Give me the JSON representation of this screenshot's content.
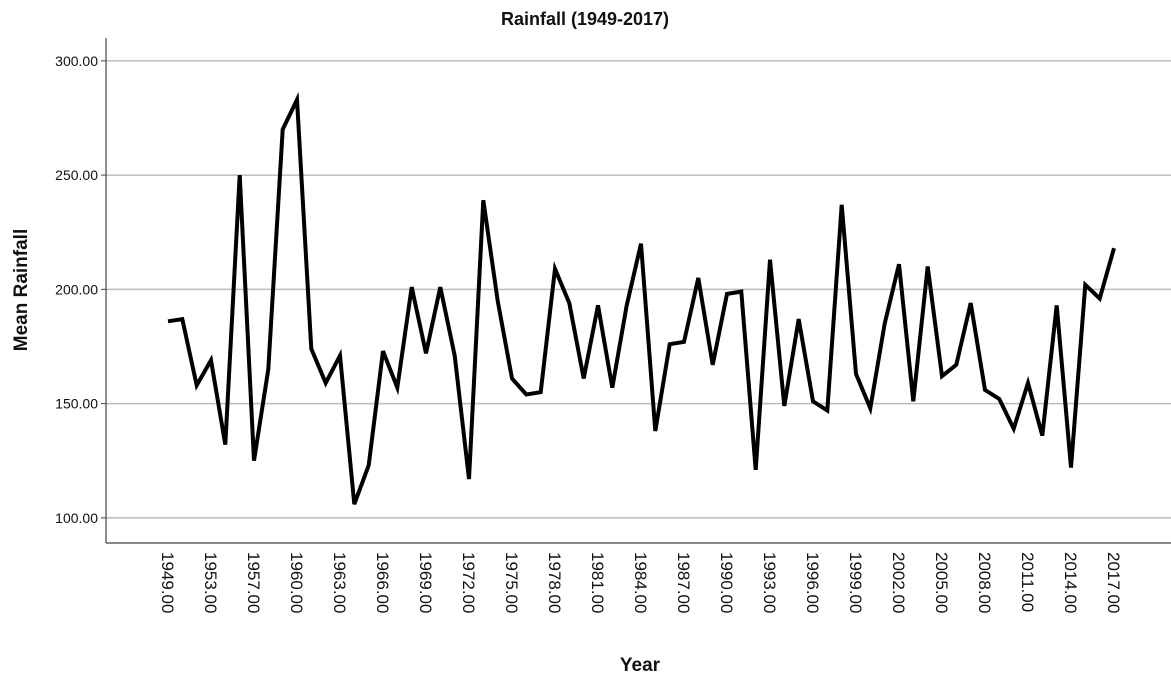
{
  "chart_data": {
    "type": "line",
    "title": "Rainfall (1949-2017)",
    "x_label": "Year",
    "y_label": "Mean Rainfall",
    "categories": [
      "1949.00",
      null,
      null,
      "1953.00",
      null,
      null,
      "1957.00",
      null,
      null,
      "1960.00",
      null,
      null,
      "1963.00",
      null,
      null,
      "1966.00",
      null,
      null,
      "1969.00",
      null,
      null,
      "1972.00",
      null,
      null,
      "1975.00",
      null,
      null,
      "1978.00",
      null,
      null,
      "1981.00",
      null,
      null,
      "1984.00",
      null,
      null,
      "1987.00",
      null,
      null,
      "1990.00",
      null,
      null,
      "1993.00",
      null,
      null,
      "1996.00",
      null,
      null,
      "1999.00",
      null,
      null,
      "2002.00",
      null,
      null,
      "2005.00",
      null,
      null,
      "2008.00",
      null,
      null,
      "2011.00",
      null,
      null,
      "2014.00",
      null,
      null,
      "2017.00"
    ],
    "series": [
      {
        "name": "Mean Rainfall",
        "color": "#000000",
        "values": [
          186,
          187,
          158,
          169,
          132,
          250,
          125,
          165,
          270,
          283,
          174,
          159,
          171,
          106,
          123,
          173,
          157,
          201,
          172,
          201,
          171,
          117,
          239,
          195,
          161,
          154,
          155,
          209,
          194,
          161,
          193,
          157,
          193,
          220,
          138,
          176,
          177,
          205,
          167,
          198,
          199,
          121,
          213,
          149,
          187,
          151,
          147,
          237,
          163,
          148,
          185,
          211,
          151,
          210,
          162,
          167,
          194,
          156,
          152,
          139,
          159,
          136,
          193,
          122,
          202,
          196,
          218
        ]
      }
    ],
    "ylim": [
      89,
      310
    ],
    "yticks": [
      {
        "value": 100,
        "label": "100.00"
      },
      {
        "value": 150,
        "label": "150.00"
      },
      {
        "value": 200,
        "label": "200.00"
      },
      {
        "value": 250,
        "label": "250.00"
      },
      {
        "value": 300,
        "label": "300.00"
      }
    ],
    "grid": true
  }
}
